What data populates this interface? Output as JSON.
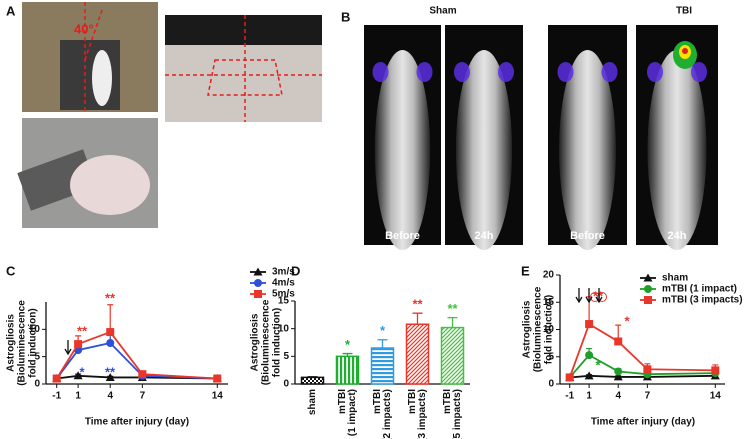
{
  "figure": {
    "panel_a": {
      "label": "A",
      "angle_label": "40°"
    },
    "panel_b": {
      "label": "B",
      "groups": [
        "Sham",
        "TBI"
      ],
      "images": [
        "Before",
        "24h",
        "Before",
        "24h"
      ]
    }
  },
  "chart_data": [
    {
      "type": "line",
      "label": "C",
      "ylabel": [
        "Astrogliosis",
        "(Bioluminescence",
        "fold induction)"
      ],
      "xlabel": "Time after injury (day)",
      "x": [
        -1,
        1,
        4,
        7,
        14
      ],
      "xlim": [
        -2,
        15
      ],
      "xticks": [
        -1,
        1,
        4,
        7,
        14
      ],
      "ylim": [
        0,
        15
      ],
      "yticks": [
        0,
        5,
        10
      ],
      "series": [
        {
          "name": "3m/s",
          "color": "#111111",
          "marker": "triangle",
          "values": [
            1,
            1.5,
            1.2,
            1.2,
            1.0
          ],
          "errors": [
            0.1,
            0.3,
            0.2,
            0.2,
            0.1
          ]
        },
        {
          "name": "4m/s",
          "color": "#2e4fd8",
          "marker": "circle",
          "values": [
            1,
            6.2,
            7.5,
            1.5,
            1.0
          ],
          "errors": [
            0.1,
            1.2,
            2.0,
            0.3,
            0.1
          ]
        },
        {
          "name": "5m/s",
          "color": "#e8372a",
          "marker": "square",
          "values": [
            1,
            7.3,
            9.5,
            1.8,
            1.0
          ],
          "errors": [
            0.1,
            1.5,
            5.0,
            0.3,
            0.1
          ]
        }
      ],
      "annotations": [
        {
          "text": "**",
          "color": "#e8372a"
        },
        {
          "text": "*",
          "color": "#2e4fd8"
        },
        {
          "text": "**",
          "color": "#e8372a"
        },
        {
          "text": "**",
          "color": "#2e4fd8"
        }
      ]
    },
    {
      "type": "bar",
      "label": "D",
      "ylabel": [
        "Astrogliosis",
        "(Bioluminescence",
        "fold induction)"
      ],
      "categories": [
        [
          "sham"
        ],
        [
          "mTBI",
          "(1 impact)"
        ],
        [
          "mTBI",
          "(2 impacts)"
        ],
        [
          "mTBI",
          "(3 impacts)"
        ],
        [
          "mTBI",
          "(5 impacts)"
        ]
      ],
      "values": [
        1.2,
        5.0,
        6.5,
        10.8,
        10.2
      ],
      "errors": [
        0.1,
        0.5,
        1.5,
        2.0,
        1.8
      ],
      "colors": [
        "#111111",
        "#1fae2f",
        "#3399e0",
        "#e8372a",
        "#45c040"
      ],
      "ylim": [
        0,
        15
      ],
      "yticks": [
        0,
        5,
        10,
        15
      ],
      "bar_annotations": [
        null,
        "*",
        "*",
        "**",
        "**"
      ]
    },
    {
      "type": "line",
      "label": "E",
      "ylabel": [
        "Astrogliosis",
        "(Bioluminescence",
        "fold induction)"
      ],
      "xlabel": "Time after injury (day)",
      "x": [
        -1,
        1,
        4,
        7,
        14
      ],
      "xlim": [
        -2,
        15
      ],
      "xticks": [
        -1,
        1,
        4,
        7,
        14
      ],
      "ylim": [
        0,
        20
      ],
      "yticks": [
        0,
        5,
        10,
        15,
        20
      ],
      "series": [
        {
          "name": "sham",
          "color": "#111111",
          "marker": "triangle",
          "values": [
            1.2,
            1.5,
            1.3,
            1.3,
            1.5
          ],
          "errors": [
            0.1,
            0.2,
            0.2,
            0.2,
            0.2
          ]
        },
        {
          "name": "mTBI (1 impact)",
          "color": "#1f9e2a",
          "marker": "circle",
          "values": [
            1.2,
            5.3,
            2.3,
            1.8,
            2.0
          ],
          "errors": [
            0.1,
            1.2,
            0.5,
            0.4,
            0.5
          ]
        },
        {
          "name": "mTBI (3 impacts)",
          "color": "#e8372a",
          "marker": "square",
          "values": [
            1.2,
            11.0,
            7.8,
            2.7,
            2.5
          ],
          "errors": [
            0.1,
            5.0,
            3.0,
            1.0,
            1.0
          ]
        }
      ],
      "annotations": [
        {
          "text": "**",
          "color": "#e8372a"
        },
        {
          "text": "*",
          "color": "#1f9e2a"
        },
        {
          "text": "*",
          "color": "#e8372a"
        }
      ]
    }
  ]
}
